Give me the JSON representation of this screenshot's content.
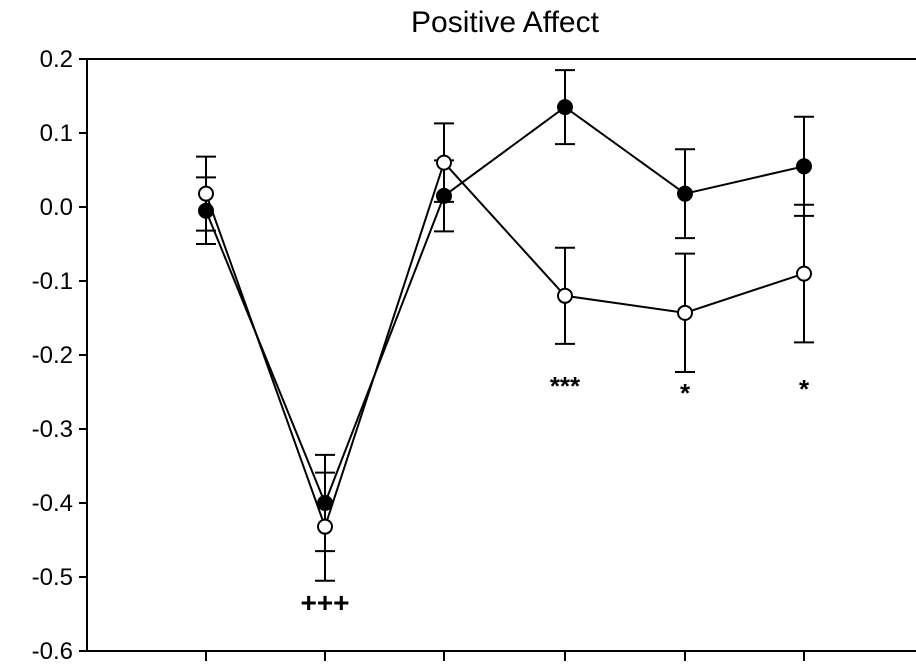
{
  "chart_data": {
    "type": "line",
    "title": "Positive Affect",
    "xlabel": "",
    "ylabel": "",
    "ylim": [
      -0.6,
      0.2
    ],
    "yticks": [
      "0.2",
      "0.1",
      "0.0",
      "-0.1",
      "-0.2",
      "-0.3",
      "-0.4",
      "-0.5",
      "-0.6"
    ],
    "x": [
      1,
      2,
      3,
      4,
      5,
      6
    ],
    "series": [
      {
        "marker": "filled-circle",
        "values": [
          -0.005,
          -0.4,
          0.015,
          0.135,
          0.018,
          0.055
        ],
        "errors": [
          0.045,
          0.065,
          0.048,
          0.05,
          0.06,
          0.067
        ]
      },
      {
        "marker": "open-circle",
        "values": [
          0.018,
          -0.432,
          0.06,
          -0.12,
          -0.143,
          -0.09
        ],
        "errors": [
          0.05,
          0.073,
          0.053,
          0.065,
          0.08,
          0.093
        ]
      }
    ],
    "annotations": [
      {
        "x": 2,
        "text": "+++"
      },
      {
        "x": 4,
        "text": "***"
      },
      {
        "x": 5,
        "text": "*"
      },
      {
        "x": 6,
        "text": "*"
      }
    ],
    "grid": false,
    "colors": {
      "line": "#000000",
      "open_fill": "#ffffff",
      "filled": "#000000"
    }
  }
}
